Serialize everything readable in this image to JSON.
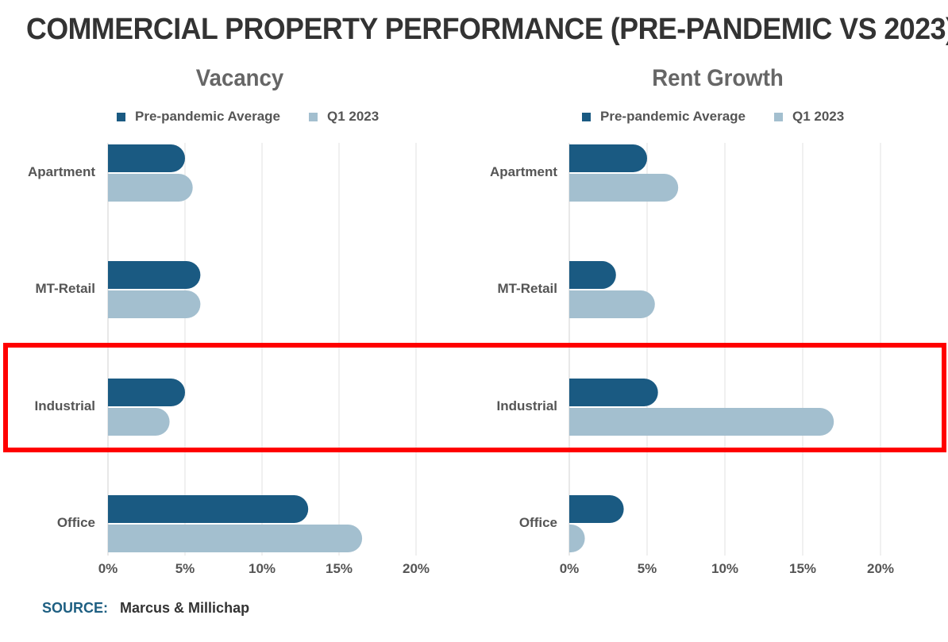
{
  "title": "COMMERCIAL PROPERTY PERFORMANCE (PRE-PANDEMIC VS 2023)",
  "colors": {
    "series1": "#1a5a82",
    "series2": "#a3bfcf",
    "grid": "#e2e2e2",
    "highlight": "#ff0000"
  },
  "chart_data": [
    {
      "type": "bar",
      "orientation": "horizontal",
      "title": "Vacancy",
      "categories": [
        "Apartment",
        "MT-Retail",
        "Industrial",
        "Office"
      ],
      "series": [
        {
          "name": "Pre-pandemic Average",
          "values": [
            5.0,
            6.0,
            5.0,
            13.0
          ]
        },
        {
          "name": "Q1 2023",
          "values": [
            5.5,
            6.0,
            4.0,
            16.5
          ]
        }
      ],
      "xlim": [
        0,
        20
      ],
      "xticks": [
        "0%",
        "5%",
        "10%",
        "15%",
        "20%"
      ],
      "grid": true,
      "legend": "top"
    },
    {
      "type": "bar",
      "orientation": "horizontal",
      "title": "Rent Growth",
      "categories": [
        "Apartment",
        "MT-Retail",
        "Industrial",
        "Office"
      ],
      "series": [
        {
          "name": "Pre-pandemic Average",
          "values": [
            5.0,
            3.0,
            5.7,
            3.5
          ]
        },
        {
          "name": "Q1 2023",
          "values": [
            7.0,
            5.5,
            17.0,
            1.0
          ]
        }
      ],
      "xlim": [
        0,
        20
      ],
      "xticks": [
        "0%",
        "5%",
        "10%",
        "15%",
        "20%"
      ],
      "grid": true,
      "legend": "top"
    }
  ],
  "highlight_category": "Industrial",
  "source": {
    "label": "SOURCE:",
    "value": "Marcus & Millichap"
  }
}
